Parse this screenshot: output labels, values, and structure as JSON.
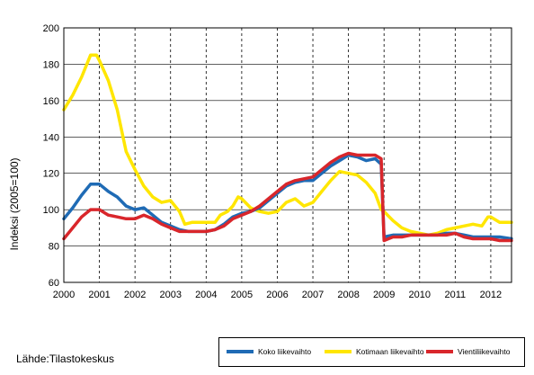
{
  "source_text": "Lähde:Tilastokeskus",
  "chart_data": {
    "type": "line",
    "title": "",
    "xlabel": "",
    "ylabel": "Indeksi (2005=100)",
    "ylim": [
      60,
      200
    ],
    "yticks": [
      60,
      80,
      100,
      120,
      140,
      160,
      180,
      200
    ],
    "xlim": [
      2000,
      2012.583
    ],
    "xticks": [
      "2000",
      "2001",
      "2002",
      "2003",
      "2004",
      "2005",
      "2006",
      "2007",
      "2008",
      "2009",
      "2010",
      "2011",
      "2012"
    ],
    "grid": "vertical dashed at years, horizontal at y ticks",
    "legend_position": "bottom-right",
    "series": [
      {
        "name": "Koko liikevaihto",
        "color": "#1f6bb5",
        "points": [
          [
            2000.0,
            95
          ],
          [
            2000.25,
            101
          ],
          [
            2000.5,
            108
          ],
          [
            2000.75,
            114
          ],
          [
            2001.0,
            114
          ],
          [
            2001.25,
            110
          ],
          [
            2001.5,
            107
          ],
          [
            2001.75,
            102
          ],
          [
            2002.0,
            100
          ],
          [
            2002.25,
            101
          ],
          [
            2002.5,
            97
          ],
          [
            2002.75,
            93
          ],
          [
            2003.0,
            91
          ],
          [
            2003.25,
            89
          ],
          [
            2003.5,
            88
          ],
          [
            2003.75,
            88
          ],
          [
            2004.0,
            88
          ],
          [
            2004.25,
            89
          ],
          [
            2004.5,
            92
          ],
          [
            2004.75,
            96
          ],
          [
            2005.0,
            98
          ],
          [
            2005.25,
            99
          ],
          [
            2005.5,
            101
          ],
          [
            2005.75,
            105
          ],
          [
            2006.0,
            109
          ],
          [
            2006.25,
            113
          ],
          [
            2006.5,
            115
          ],
          [
            2006.75,
            116
          ],
          [
            2007.0,
            116
          ],
          [
            2007.25,
            120
          ],
          [
            2007.5,
            124
          ],
          [
            2007.75,
            127
          ],
          [
            2008.0,
            130
          ],
          [
            2008.25,
            129
          ],
          [
            2008.5,
            127
          ],
          [
            2008.75,
            128
          ],
          [
            2008.92,
            125
          ],
          [
            2009.0,
            85
          ],
          [
            2009.25,
            86
          ],
          [
            2009.5,
            86
          ],
          [
            2009.75,
            86
          ],
          [
            2010.0,
            86
          ],
          [
            2010.25,
            86
          ],
          [
            2010.5,
            86
          ],
          [
            2010.75,
            87
          ],
          [
            2011.0,
            87
          ],
          [
            2011.25,
            86
          ],
          [
            2011.5,
            85
          ],
          [
            2011.75,
            85
          ],
          [
            2012.0,
            85
          ],
          [
            2012.25,
            85
          ],
          [
            2012.58,
            84
          ]
        ]
      },
      {
        "name": "Kotimaan liikevaihto",
        "color": "#ffe600",
        "points": [
          [
            2000.0,
            155
          ],
          [
            2000.25,
            163
          ],
          [
            2000.5,
            173
          ],
          [
            2000.75,
            185
          ],
          [
            2000.92,
            185
          ],
          [
            2001.0,
            182
          ],
          [
            2001.25,
            171
          ],
          [
            2001.5,
            155
          ],
          [
            2001.75,
            132
          ],
          [
            2002.0,
            122
          ],
          [
            2002.25,
            113
          ],
          [
            2002.5,
            107
          ],
          [
            2002.75,
            104
          ],
          [
            2003.0,
            105
          ],
          [
            2003.25,
            99
          ],
          [
            2003.4,
            92
          ],
          [
            2003.6,
            93
          ],
          [
            2003.75,
            93
          ],
          [
            2004.0,
            93
          ],
          [
            2004.25,
            93
          ],
          [
            2004.4,
            97
          ],
          [
            2004.6,
            99
          ],
          [
            2004.75,
            102
          ],
          [
            2004.9,
            107
          ],
          [
            2005.0,
            106
          ],
          [
            2005.25,
            101
          ],
          [
            2005.5,
            99
          ],
          [
            2005.75,
            98
          ],
          [
            2006.0,
            99
          ],
          [
            2006.25,
            104
          ],
          [
            2006.5,
            106
          ],
          [
            2006.75,
            102
          ],
          [
            2007.0,
            104
          ],
          [
            2007.25,
            110
          ],
          [
            2007.5,
            116
          ],
          [
            2007.75,
            121
          ],
          [
            2008.0,
            120
          ],
          [
            2008.25,
            119
          ],
          [
            2008.5,
            115
          ],
          [
            2008.75,
            109
          ],
          [
            2008.92,
            100
          ],
          [
            2009.0,
            99
          ],
          [
            2009.25,
            94
          ],
          [
            2009.5,
            90
          ],
          [
            2009.75,
            88
          ],
          [
            2010.0,
            87
          ],
          [
            2010.25,
            86
          ],
          [
            2010.5,
            87
          ],
          [
            2010.75,
            89
          ],
          [
            2011.0,
            90
          ],
          [
            2011.25,
            91
          ],
          [
            2011.5,
            92
          ],
          [
            2011.75,
            91
          ],
          [
            2011.92,
            96
          ],
          [
            2012.0,
            96
          ],
          [
            2012.25,
            93
          ],
          [
            2012.58,
            93
          ]
        ]
      },
      {
        "name": "Vientiliikevaihto",
        "color": "#d9262b",
        "points": [
          [
            2000.0,
            84
          ],
          [
            2000.25,
            90
          ],
          [
            2000.5,
            96
          ],
          [
            2000.75,
            100
          ],
          [
            2001.0,
            100
          ],
          [
            2001.25,
            97
          ],
          [
            2001.5,
            96
          ],
          [
            2001.75,
            95
          ],
          [
            2002.0,
            95
          ],
          [
            2002.25,
            97
          ],
          [
            2002.5,
            95
          ],
          [
            2002.75,
            92
          ],
          [
            2003.0,
            90
          ],
          [
            2003.25,
            88
          ],
          [
            2003.5,
            88
          ],
          [
            2003.75,
            88
          ],
          [
            2004.0,
            88
          ],
          [
            2004.25,
            89
          ],
          [
            2004.5,
            91
          ],
          [
            2004.75,
            95
          ],
          [
            2005.0,
            97
          ],
          [
            2005.25,
            99
          ],
          [
            2005.5,
            102
          ],
          [
            2005.75,
            106
          ],
          [
            2006.0,
            110
          ],
          [
            2006.25,
            114
          ],
          [
            2006.5,
            116
          ],
          [
            2006.75,
            117
          ],
          [
            2007.0,
            118
          ],
          [
            2007.25,
            122
          ],
          [
            2007.5,
            126
          ],
          [
            2007.75,
            129
          ],
          [
            2008.0,
            131
          ],
          [
            2008.25,
            130
          ],
          [
            2008.5,
            130
          ],
          [
            2008.75,
            130
          ],
          [
            2008.92,
            128
          ],
          [
            2009.0,
            83
          ],
          [
            2009.25,
            85
          ],
          [
            2009.5,
            85
          ],
          [
            2009.75,
            86
          ],
          [
            2010.0,
            86
          ],
          [
            2010.25,
            86
          ],
          [
            2010.5,
            86
          ],
          [
            2010.75,
            86
          ],
          [
            2011.0,
            87
          ],
          [
            2011.25,
            85
          ],
          [
            2011.5,
            84
          ],
          [
            2011.75,
            84
          ],
          [
            2012.0,
            84
          ],
          [
            2012.25,
            83
          ],
          [
            2012.58,
            83
          ]
        ]
      }
    ]
  }
}
